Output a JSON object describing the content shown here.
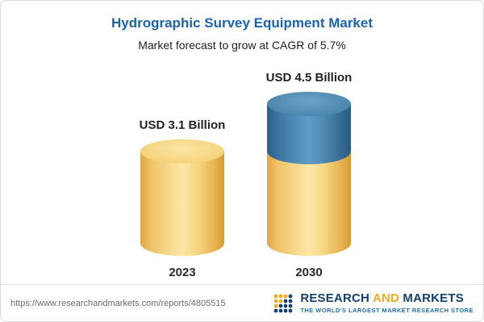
{
  "header": {
    "title": "Hydrographic Survey Equipment Market",
    "subtitle": "Market forecast to grow at CAGR of 5.7%"
  },
  "chart_data": {
    "type": "bar",
    "variant": "3d-cylinder-infographic",
    "title": "Hydrographic Survey Equipment Market",
    "subtitle": "Market forecast to grow at CAGR of 5.7%",
    "unit": "USD Billion",
    "cagr_pct": 5.7,
    "categories": [
      "2023",
      "2030"
    ],
    "values": [
      3.1,
      4.5
    ],
    "bars": [
      {
        "category": "2023",
        "value": 3.1,
        "value_label": "USD 3.1 Billion",
        "segments": [
          {
            "name": "market-size-2023",
            "value": 3.1,
            "color": "#f3cf72"
          }
        ]
      },
      {
        "category": "2030",
        "value": 4.5,
        "value_label": "USD 4.5 Billion",
        "segments": [
          {
            "name": "growth-2023-to-2030",
            "value": 1.4,
            "color": "#4080ac"
          },
          {
            "name": "market-size-2023",
            "value": 3.1,
            "color": "#f3cf72"
          }
        ]
      }
    ],
    "axes": {
      "x_visible": false,
      "y_visible": false,
      "gridlines": false
    },
    "legend_position": "none"
  },
  "footer": {
    "report_url": "https://www.researchandmarkets.com/reports/4805515",
    "brand": {
      "word1": "RESEARCH",
      "word2": "AND",
      "word3": "MARKETS",
      "tagline": "THE WORLD'S LARGEST MARKET RESEARCH STORE"
    }
  },
  "colors": {
    "title_blue": "#1c63ae",
    "bar_yellow": "#f3cf72",
    "bar_blue": "#4080ac",
    "brand_navy": "#15406e",
    "brand_orange": "#f5a81c",
    "tagline_blue": "#1f6cb0",
    "url_gray": "#6b6b6b"
  }
}
